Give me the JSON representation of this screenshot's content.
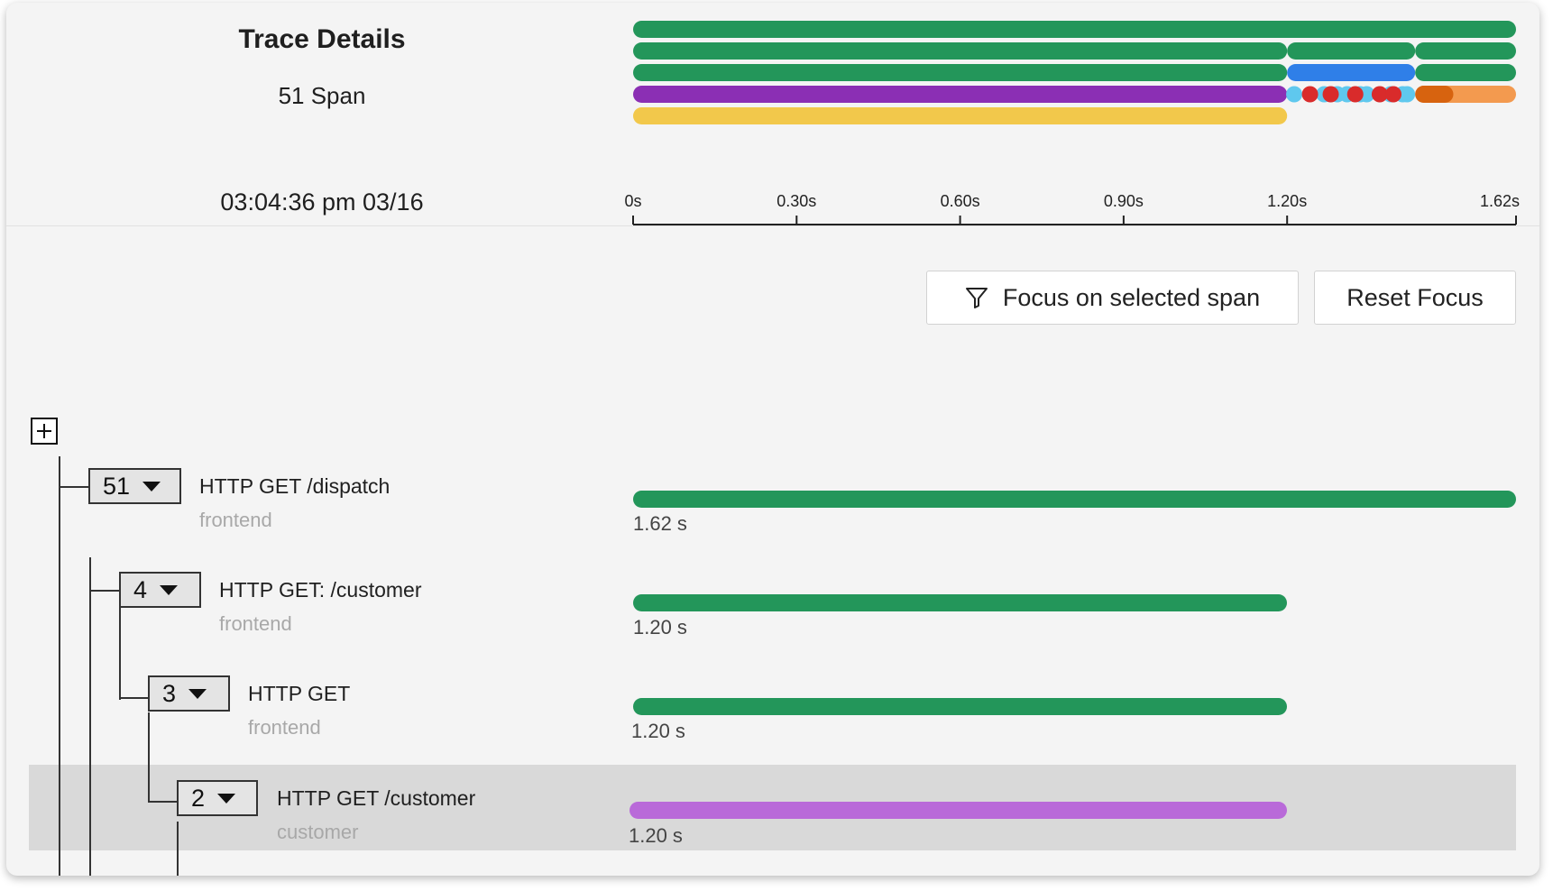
{
  "header": {
    "title": "Trace Details",
    "span_count": "51 Span",
    "timestamp": "03:04:36 pm 03/16"
  },
  "timeline": {
    "ticks": [
      "0s",
      "0.30s",
      "0.60s",
      "0.90s",
      "1.20s",
      "1.62s"
    ],
    "total_seconds": 1.62
  },
  "toolbar": {
    "focus_label": "Focus on selected span",
    "reset_label": "Reset Focus",
    "focus_icon": "filter-icon"
  },
  "spans": [
    {
      "count": "51",
      "name": "HTTP GET /dispatch",
      "service": "frontend",
      "duration": "1.62 s",
      "start": 0,
      "end": 1.62,
      "color": "#23965a"
    },
    {
      "count": "4",
      "name": "HTTP GET: /customer",
      "service": "frontend",
      "duration": "1.20 s",
      "start": 0,
      "end": 1.2,
      "color": "#23965a"
    },
    {
      "count": "3",
      "name": "HTTP GET",
      "service": "frontend",
      "duration": "1.20 s",
      "start": 0,
      "end": 1.2,
      "color": "#23965a"
    },
    {
      "count": "2",
      "name": "HTTP GET /customer",
      "service": "customer",
      "duration": "1.20 s",
      "start": 0,
      "end": 1.2,
      "color": "#b96ad9",
      "selected": true
    }
  ],
  "colors": {
    "green": "#23965a",
    "blue": "#2f7fe8",
    "purple": "#8b2fb4",
    "yellow": "#f2c84b",
    "orange": "#f39a4f",
    "dark_orange": "#d7630f",
    "red": "#d92b2b",
    "cyan": "#5fc8ee",
    "lavender": "#b96ad9"
  }
}
